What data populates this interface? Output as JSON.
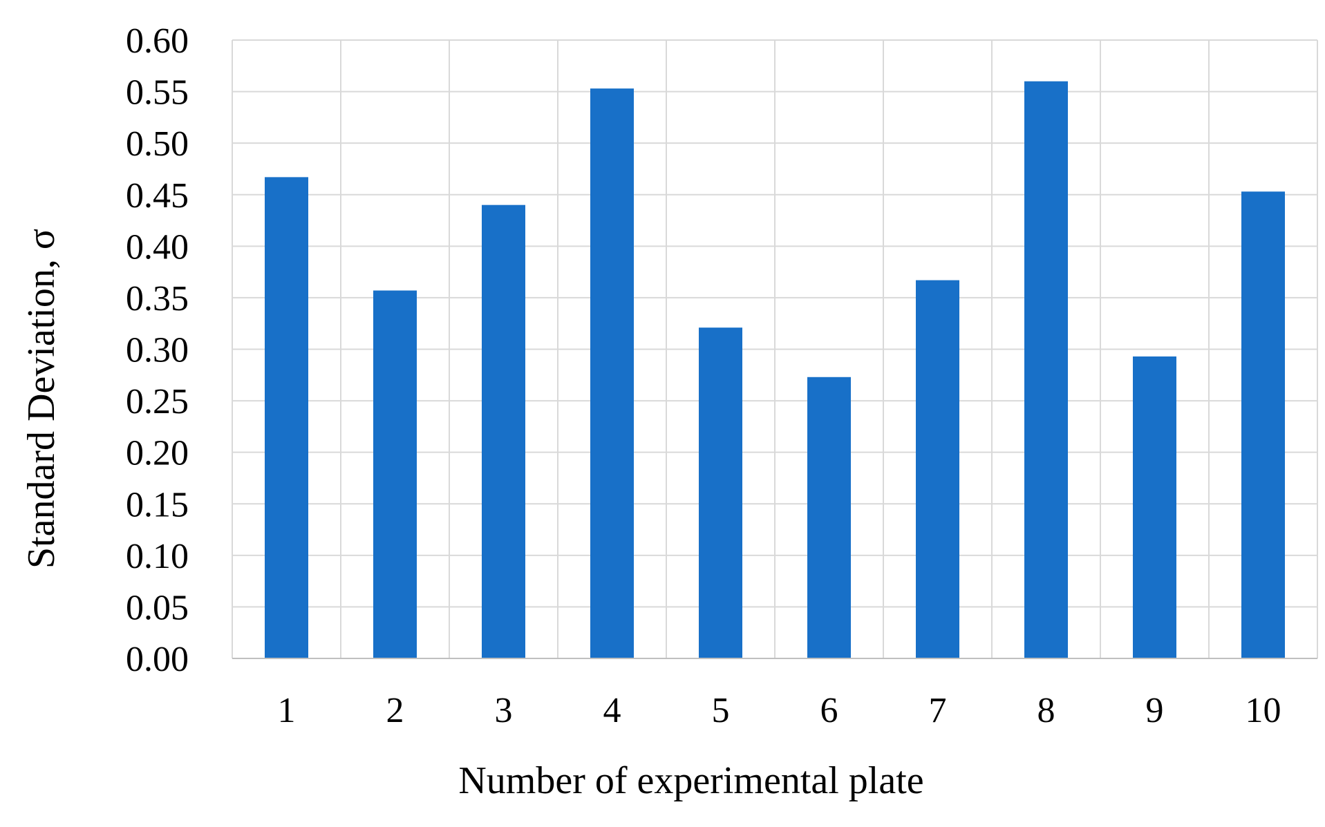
{
  "chart_data": {
    "type": "bar",
    "title": "",
    "xlabel": "Number of experimental plate",
    "ylabel": "Standard Deviation, σ",
    "ylim": [
      0,
      0.6
    ],
    "ytick_step": 0.05,
    "categories": [
      "1",
      "2",
      "3",
      "4",
      "5",
      "6",
      "7",
      "8",
      "9",
      "10"
    ],
    "values": [
      0.467,
      0.357,
      0.44,
      0.553,
      0.321,
      0.273,
      0.367,
      0.56,
      0.293,
      0.453
    ],
    "grid": true,
    "bar_color": "#1870C8",
    "legend": "none"
  }
}
